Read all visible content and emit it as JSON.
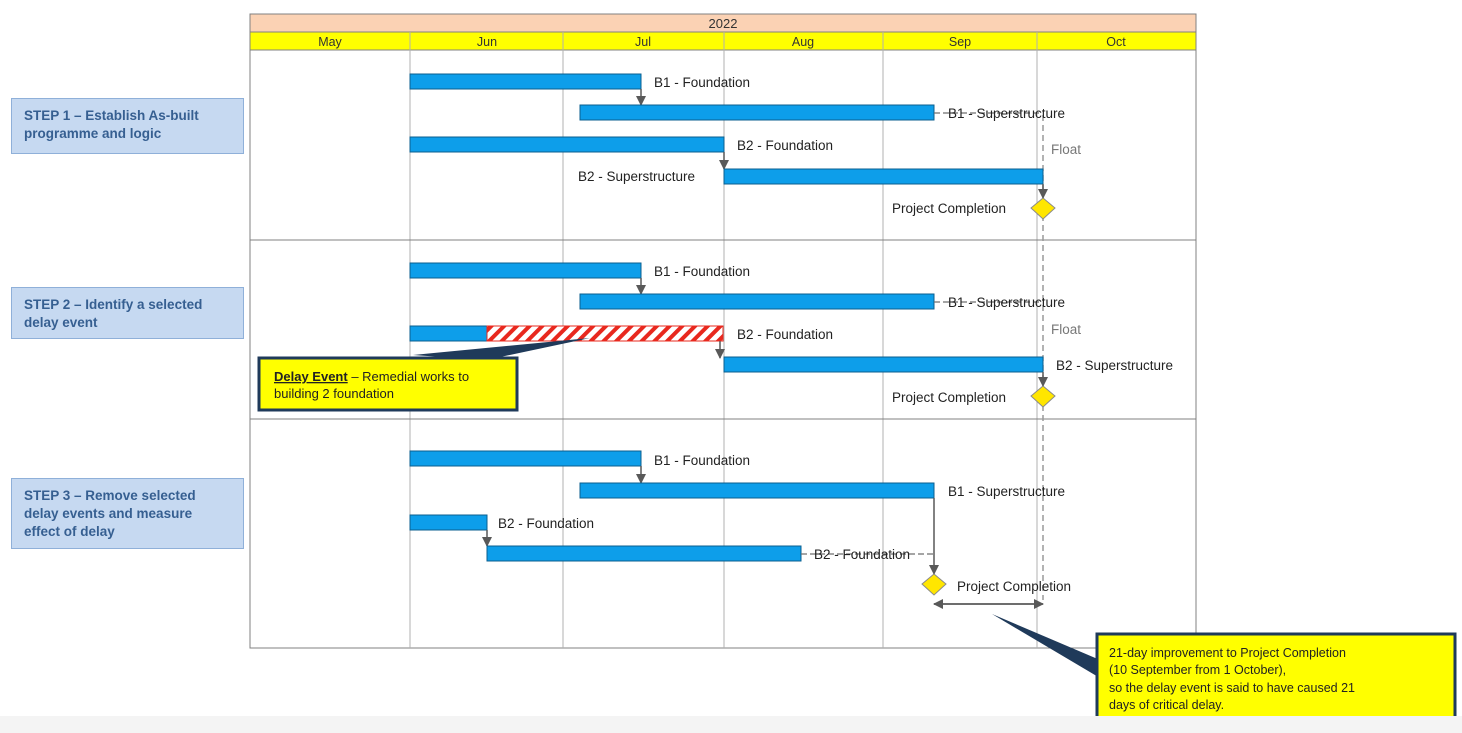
{
  "header": {
    "year": "2022",
    "months": [
      "May",
      "Jun",
      "Jul",
      "Aug",
      "Sep",
      "Oct"
    ]
  },
  "steps": [
    {
      "label": "STEP 1 – Establish As-built programme and logic",
      "rows": [
        {
          "label": "B1 - Foundation",
          "strike": false
        },
        {
          "label": "B1 - Superstructure",
          "strike": true
        },
        {
          "label": "B2 - Foundation",
          "strike": false
        },
        {
          "label": "B2 - Superstructure",
          "strike": false
        }
      ],
      "float_label": "Float",
      "milestone_label": "Project Completion"
    },
    {
      "label": "STEP 2 – Identify a selected delay event",
      "rows": [
        {
          "label": "B1 - Foundation",
          "strike": false
        },
        {
          "label": "B1 - Superstructure",
          "strike": true
        },
        {
          "label": "B2 - Foundation",
          "strike": false
        },
        {
          "label": "B2 - Superstructure",
          "strike": false
        }
      ],
      "float_label": "Float",
      "milestone_label": "Project Completion",
      "callout": {
        "title": "Delay Event",
        "text": " – Remedial works to",
        "text2": "building 2 foundation"
      }
    },
    {
      "label": "STEP 3 – Remove selected delay events and measure effect of delay",
      "rows": [
        {
          "label": "B1 - Foundation",
          "strike": false
        },
        {
          "label": "B1 - Superstructure",
          "strike": false
        },
        {
          "label": "B2 - Foundation",
          "strike": false
        },
        {
          "label": "B2 - Foundation",
          "strike": true
        }
      ],
      "milestone_label": "Project Completion",
      "callout": {
        "lines": [
          "21-day improvement to Project Completion",
          "(10 September from 1 October),",
          "so the delay event is said to have caused 21",
          "days of critical delay."
        ]
      }
    }
  ],
  "colors": {
    "bar": "#0d9eea",
    "year_header": "#fbd2b4",
    "month_header": "#ffff00",
    "milestone": "#ffe600",
    "callout_fill": "#ffff00",
    "callout_border": "#1f3a5a",
    "step_fill": "#c6d9f1",
    "step_text": "#365f91",
    "delay_hatch": "#e8281e"
  }
}
